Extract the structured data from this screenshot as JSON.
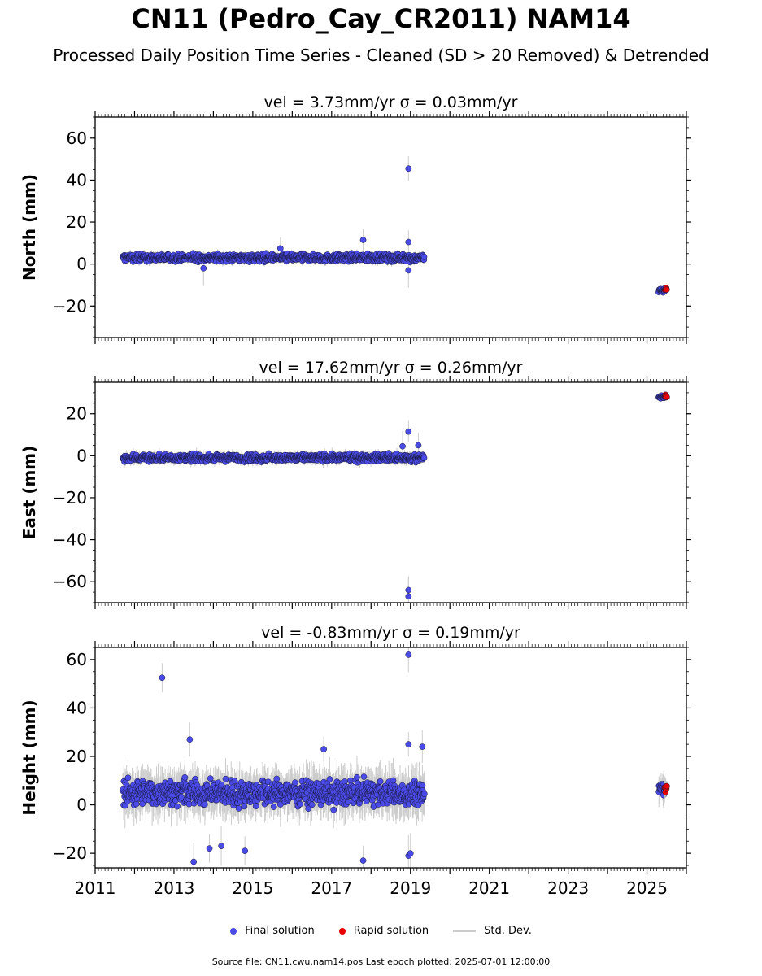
{
  "title": "CN11 (Pedro_Cay_CR2011) NAM14",
  "subtitle": "Processed Daily Position Time Series - Cleaned (SD > 20 Removed) & Detrended",
  "colors": {
    "final": "#4a4ae6",
    "rapid": "#e60000",
    "stddev": "#cccccc"
  },
  "legend": {
    "final": "Final solution",
    "rapid": "Rapid solution",
    "stddev": "Std. Dev."
  },
  "footer": "Source file: CN11.cwu.nam14.pos  Last epoch plotted: 2025-07-01 12:00:00",
  "chart_data": [
    {
      "type": "scatter",
      "title": "vel = 3.73mm/yr   σ = 0.03mm/yr",
      "ylabel": "North (mm)",
      "xlim": [
        2011.0,
        2026.0
      ],
      "ylim": [
        -35,
        70
      ],
      "yticks": [
        -20,
        0,
        20,
        40,
        60
      ],
      "ytick_labels": [
        "−20",
        "0",
        "20",
        "40",
        "60"
      ],
      "series": [
        {
          "name": "Final solution",
          "role": "final",
          "segments": [
            {
              "x": [
                2011.7,
                2019.35
              ],
              "center": 3,
              "spread": 2.5,
              "sd": 1.5
            },
            {
              "x": [
                2025.3,
                2025.45
              ],
              "center": -12.5,
              "spread": 1.5,
              "sd": 1.0
            }
          ],
          "points": [
            [
              2018.95,
              45.5
            ],
            [
              2017.8,
              11.5
            ],
            [
              2018.95,
              10.5
            ],
            [
              2018.95,
              -3
            ],
            [
              2015.7,
              7.5
            ],
            [
              2013.75,
              -2
            ]
          ]
        },
        {
          "name": "Rapid solution",
          "role": "rapid",
          "segments": [
            {
              "x": [
                2025.45,
                2025.5
              ],
              "center": -12,
              "spread": 1.0,
              "sd": 0.8
            }
          ],
          "points": []
        }
      ]
    },
    {
      "type": "scatter",
      "title": "vel = 17.62mm/yr   σ = 0.26mm/yr",
      "ylabel": "East (mm)",
      "xlim": [
        2011.0,
        2026.0
      ],
      "ylim": [
        -70,
        35
      ],
      "yticks": [
        -60,
        -40,
        -20,
        0,
        20
      ],
      "ytick_labels": [
        "−60",
        "−40",
        "−20",
        "0",
        "20"
      ],
      "series": [
        {
          "name": "Final solution",
          "role": "final",
          "segments": [
            {
              "x": [
                2011.7,
                2019.35
              ],
              "center": -1,
              "spread": 2.5,
              "sd": 1.8
            },
            {
              "x": [
                2025.3,
                2025.45
              ],
              "center": 28,
              "spread": 1.2,
              "sd": 1.0
            }
          ],
          "points": [
            [
              2018.95,
              11.5
            ],
            [
              2018.95,
              -64
            ],
            [
              2018.95,
              -67
            ],
            [
              2018.8,
              4.5
            ],
            [
              2019.2,
              5
            ]
          ]
        },
        {
          "name": "Rapid solution",
          "role": "rapid",
          "segments": [
            {
              "x": [
                2025.45,
                2025.5
              ],
              "center": 28.5,
              "spread": 1.0,
              "sd": 0.8
            }
          ],
          "points": []
        }
      ]
    },
    {
      "type": "scatter",
      "title": "vel = -0.83mm/yr   σ = 0.19mm/yr",
      "ylabel": "Height (mm)",
      "xlabel": "",
      "xlim": [
        2011.0,
        2026.0
      ],
      "ylim": [
        -26,
        65
      ],
      "yticks": [
        -20,
        0,
        20,
        40,
        60
      ],
      "ytick_labels": [
        "−20",
        "0",
        "20",
        "40",
        "60"
      ],
      "xticks": [
        2011,
        2013,
        2015,
        2017,
        2019,
        2021,
        2023,
        2025
      ],
      "series": [
        {
          "name": "Final solution",
          "role": "final",
          "segments": [
            {
              "x": [
                2011.7,
                2019.35
              ],
              "center": 5,
              "spread": 7.5,
              "sd": 6.0
            },
            {
              "x": [
                2025.3,
                2025.45
              ],
              "center": 7,
              "spread": 4.5,
              "sd": 4.0
            }
          ],
          "points": [
            [
              2012.7,
              52.5
            ],
            [
              2018.95,
              62
            ],
            [
              2013.4,
              27
            ],
            [
              2013.5,
              -23.5
            ],
            [
              2017.8,
              -23
            ],
            [
              2018.95,
              -21
            ],
            [
              2019.0,
              -20
            ],
            [
              2014.8,
              -19
            ],
            [
              2016.8,
              23
            ],
            [
              2019.3,
              24
            ],
            [
              2018.95,
              25
            ],
            [
              2014.2,
              -17
            ],
            [
              2013.9,
              -18
            ]
          ]
        },
        {
          "name": "Rapid solution",
          "role": "rapid",
          "segments": [
            {
              "x": [
                2025.45,
                2025.5
              ],
              "center": 7,
              "spread": 3.5,
              "sd": 3.0
            }
          ],
          "points": []
        }
      ]
    }
  ]
}
